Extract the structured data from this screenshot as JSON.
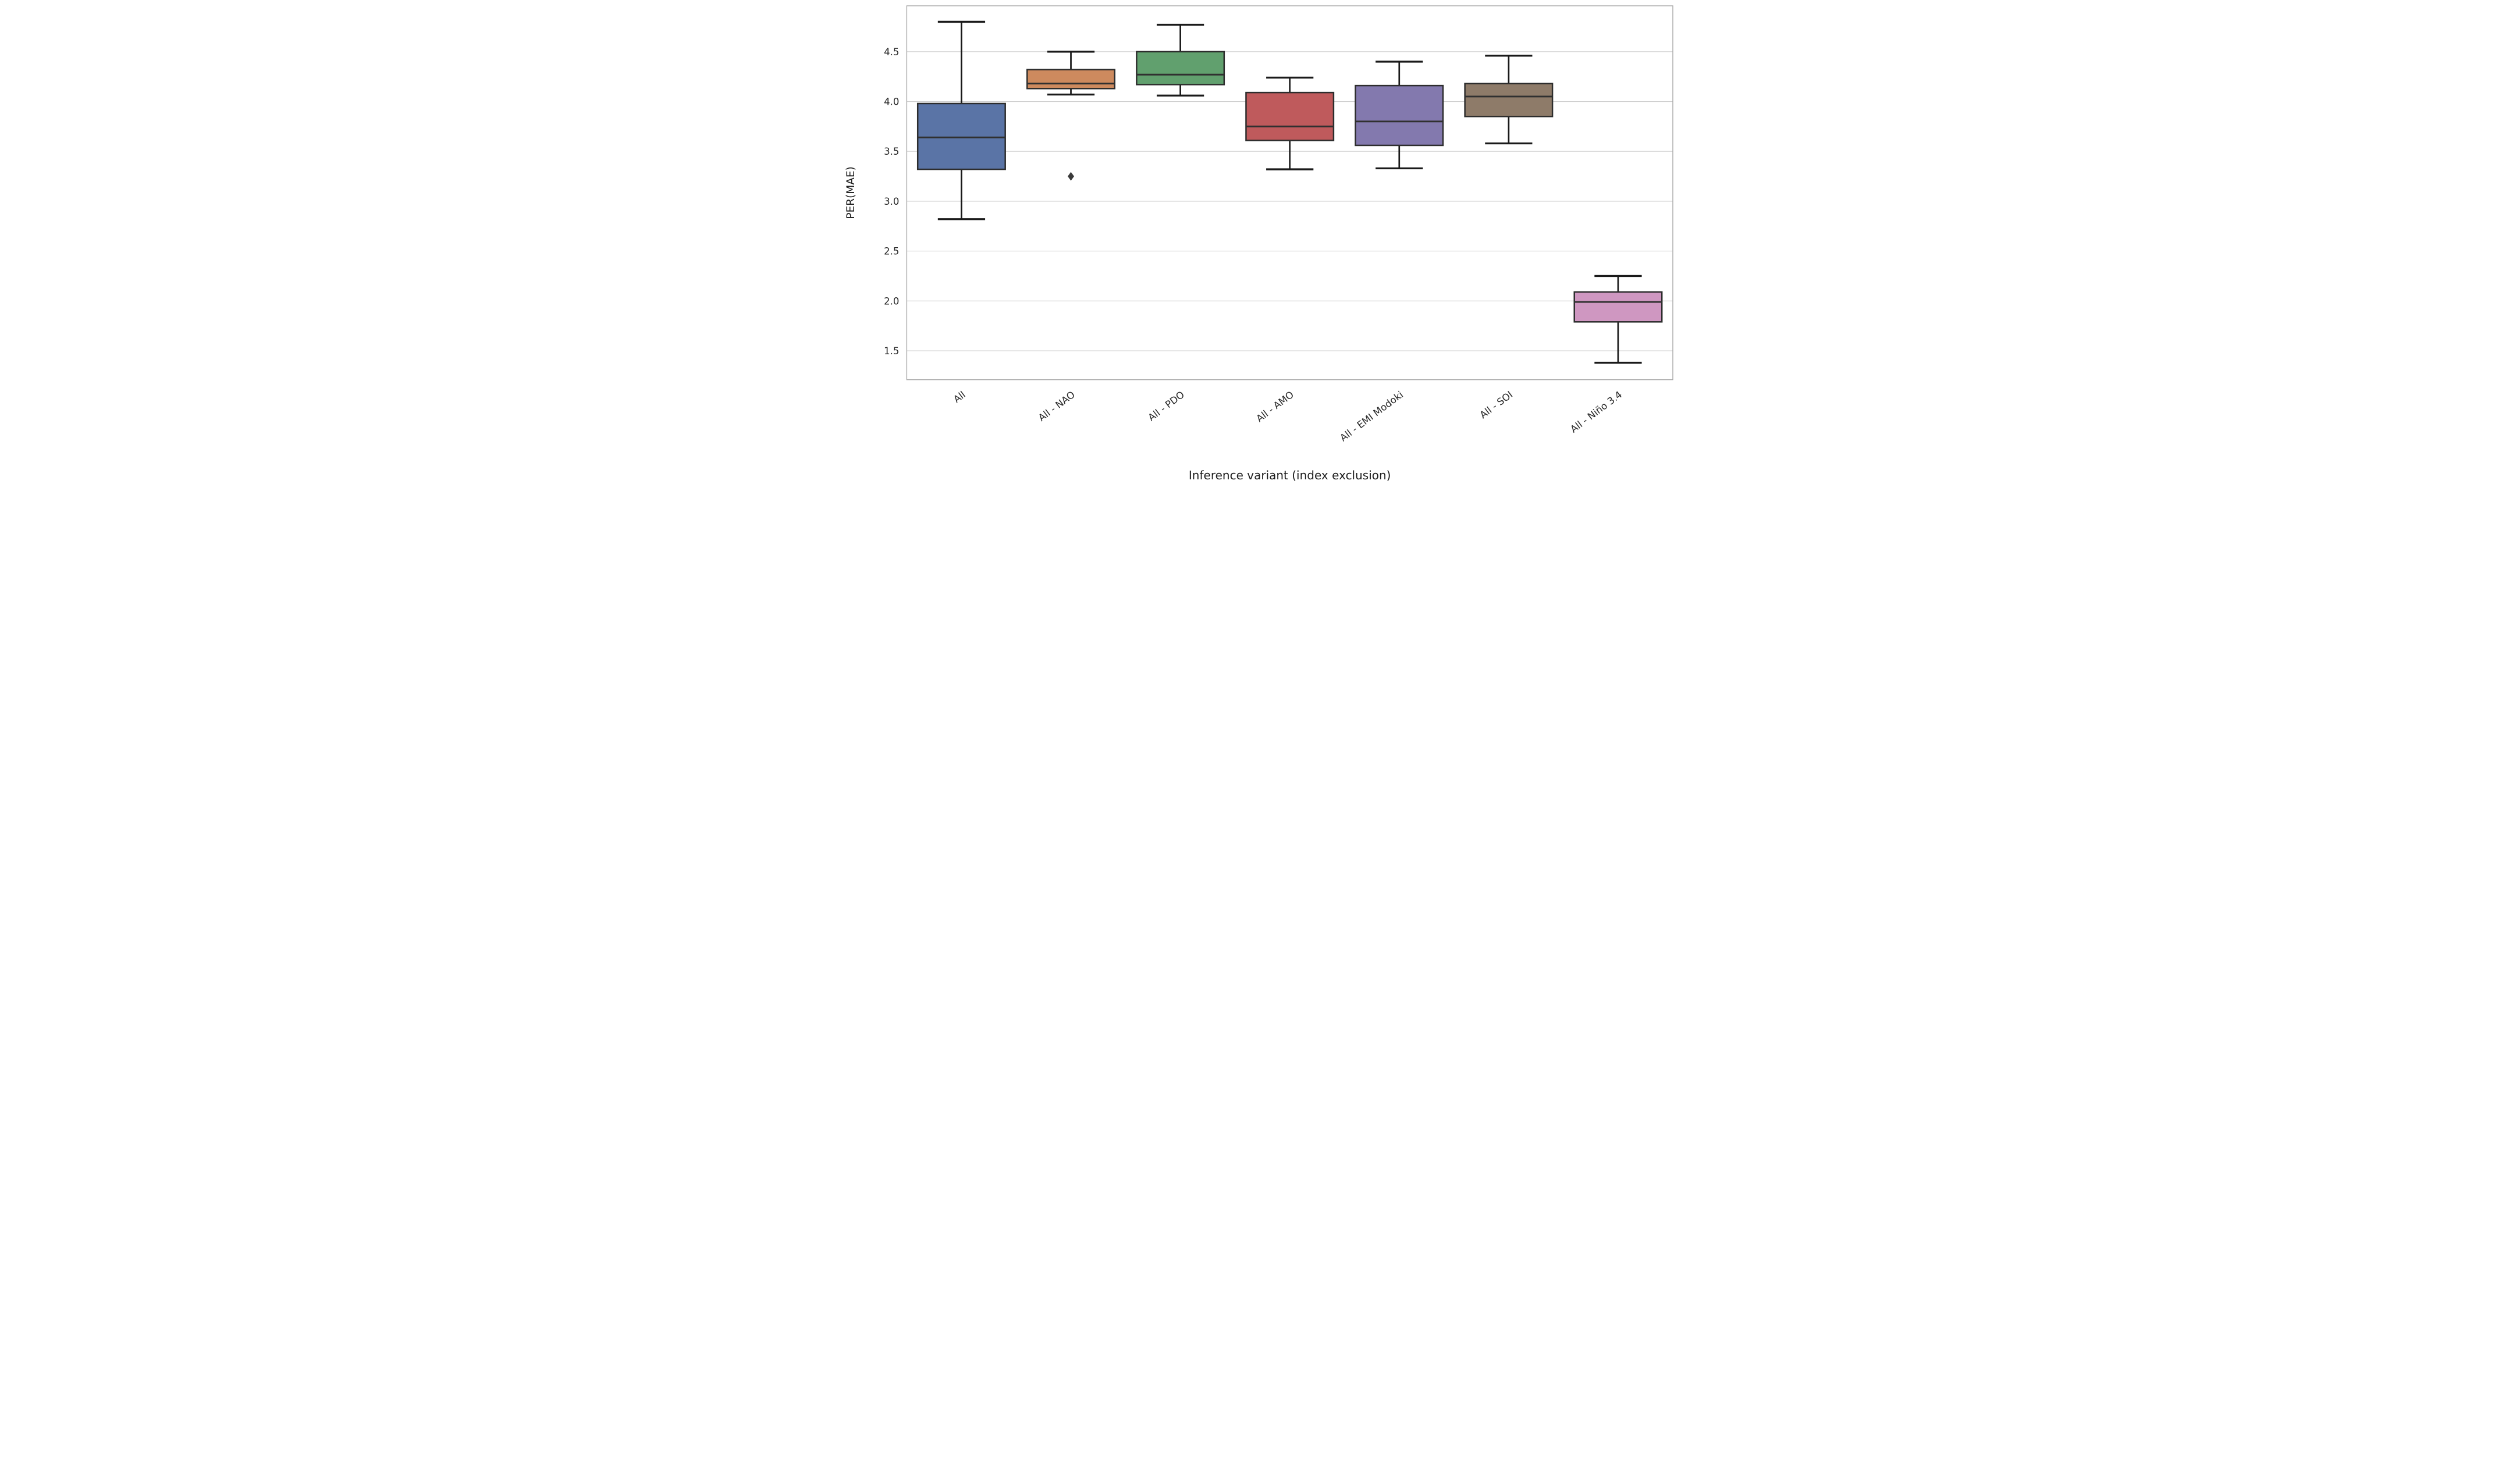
{
  "figure": {
    "background": "#ffffff"
  },
  "chart_data": {
    "type": "box",
    "title": "",
    "xlabel": "Inference variant (index exclusion)",
    "ylabel": "PER(MAE)",
    "categories": [
      "All",
      "All - NAO",
      "All - PDO",
      "All - AMO",
      "All - EMI Modoki",
      "All - SOI",
      "All - Niño 3.4"
    ],
    "ylim": [
      1.21,
      4.96
    ],
    "yticks": [
      4.5,
      4.0,
      3.5,
      3.0,
      2.5,
      2.0,
      1.5
    ],
    "ytick_labels": [
      "4.5",
      "4.0",
      "3.5",
      "3.0",
      "2.5",
      "2.0",
      "1.5"
    ],
    "grid": "horizontal-only",
    "legend": "none",
    "x_label_rotation_deg": 37,
    "series": [
      {
        "label": "All",
        "color": "#5A74A6",
        "whisker_low": 2.82,
        "q1": 3.32,
        "median": 3.64,
        "q3": 3.98,
        "whisker_high": 4.8,
        "outliers": []
      },
      {
        "label": "All - NAO",
        "color": "#CD8A5E",
        "whisker_low": 4.07,
        "q1": 4.13,
        "median": 4.18,
        "q3": 4.32,
        "whisker_high": 4.5,
        "outliers": [
          3.25
        ]
      },
      {
        "label": "All - PDO",
        "color": "#61A06E",
        "whisker_low": 4.06,
        "q1": 4.17,
        "median": 4.27,
        "q3": 4.5,
        "whisker_high": 4.77,
        "outliers": []
      },
      {
        "label": "All - AMO",
        "color": "#BF5A5C",
        "whisker_low": 3.32,
        "q1": 3.61,
        "median": 3.75,
        "q3": 4.09,
        "whisker_high": 4.24,
        "outliers": []
      },
      {
        "label": "All - EMI Modoki",
        "color": "#8379AE",
        "whisker_low": 3.33,
        "q1": 3.56,
        "median": 3.8,
        "q3": 4.16,
        "whisker_high": 4.4,
        "outliers": []
      },
      {
        "label": "All - SOI",
        "color": "#8E7B69",
        "whisker_low": 3.58,
        "q1": 3.85,
        "median": 4.05,
        "q3": 4.18,
        "whisker_high": 4.46,
        "outliers": []
      },
      {
        "label": "All - Niño 3.4",
        "color": "#CF97C1",
        "whisker_low": 1.38,
        "q1": 1.79,
        "median": 1.99,
        "q3": 2.09,
        "whisker_high": 2.25,
        "outliers": []
      }
    ],
    "style": {
      "grid_color": "#cfcfcf",
      "spine_color": "#a9a9a9",
      "box_edge_color": "#2d2d2d",
      "median_color": "#303030",
      "whisker_color": "#1a1a1a",
      "outlier_color": "#3a3a3a",
      "tick_text_color": "#262626",
      "box_width_frac": 0.8,
      "cap_width_frac": 0.54
    }
  }
}
